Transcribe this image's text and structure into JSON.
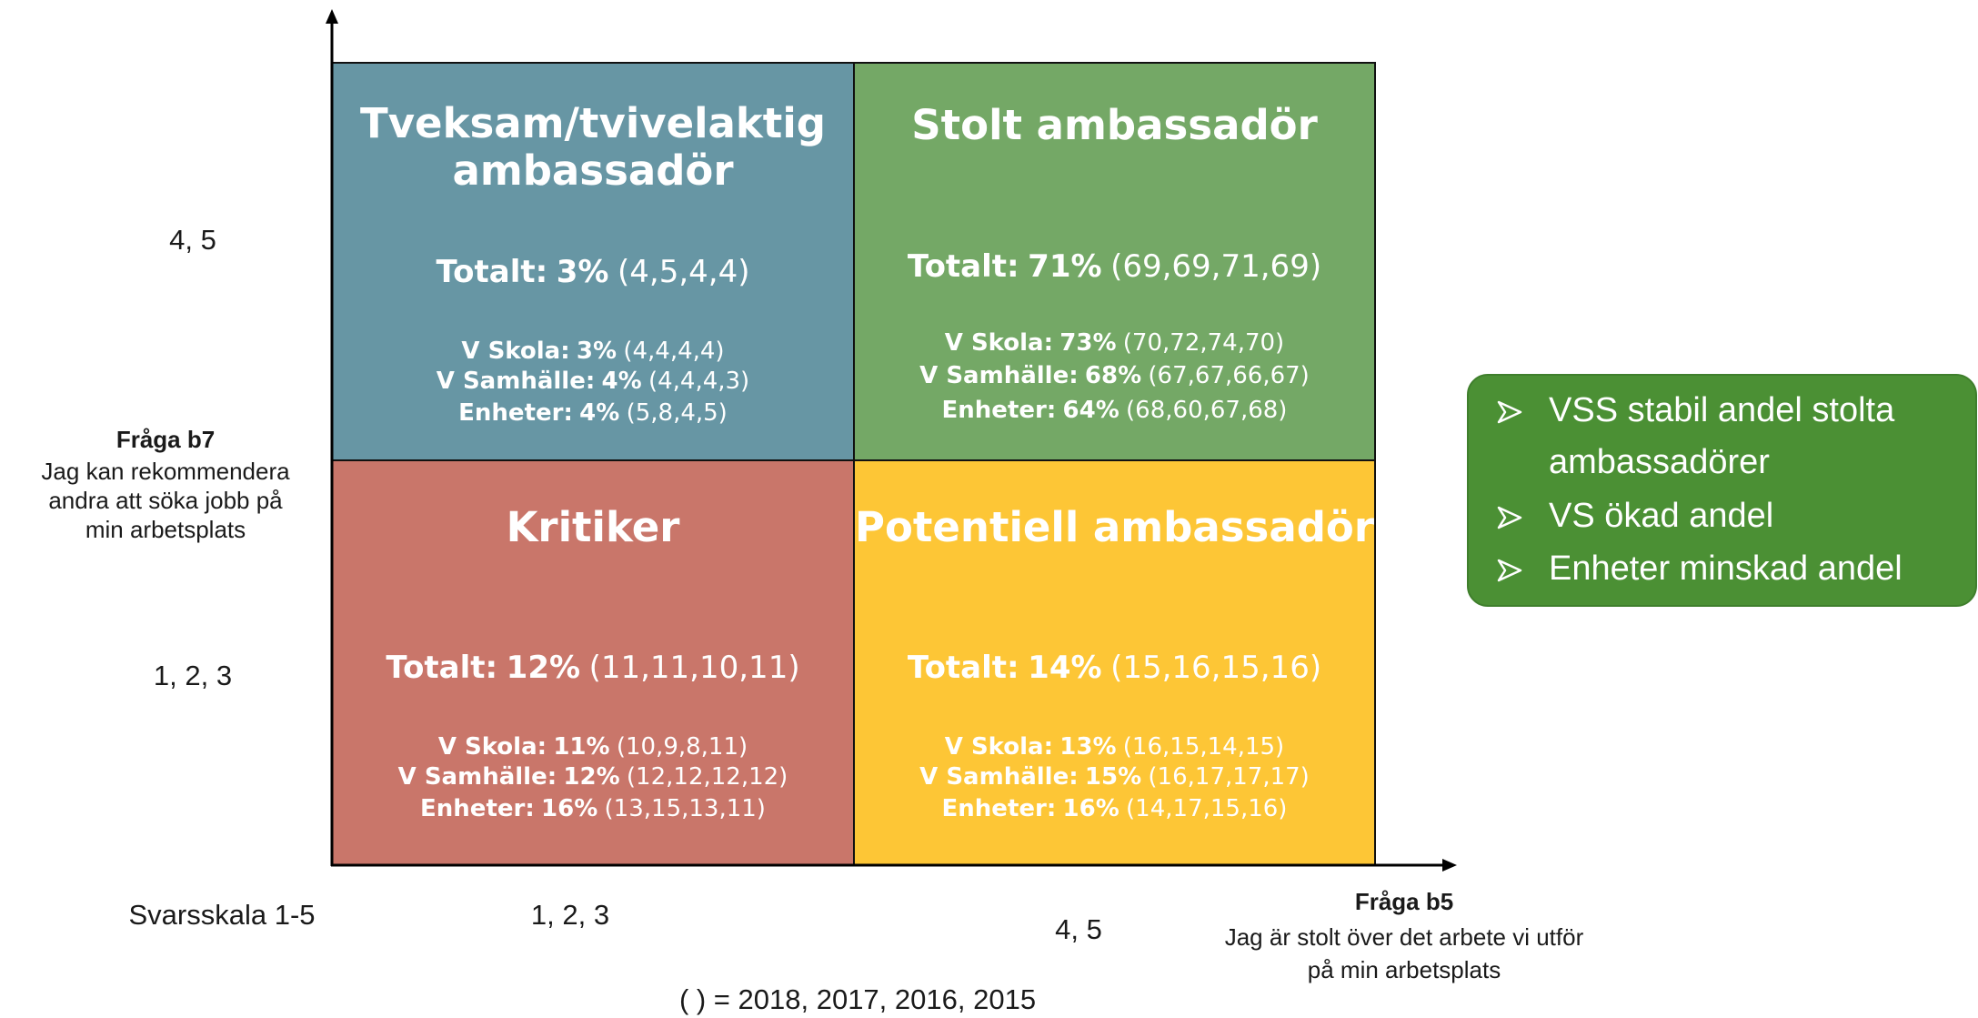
{
  "y_axis": {
    "high": "4, 5",
    "low": "1, 2, 3",
    "title": "Fråga b7",
    "description": [
      "Jag kan rekommendera",
      "andra att söka jobb på",
      "min arbetsplats"
    ]
  },
  "x_axis": {
    "scale": "Svarsskala 1-5",
    "low": "1, 2, 3",
    "high": "4, 5",
    "title": "Fråga b5",
    "description": [
      "Jag är stolt över det arbete vi utför",
      "på min arbetsplats"
    ]
  },
  "legend": "( ) = 2018, 2017, 2016, 2015",
  "quadrants": [
    {
      "title": [
        "Tveksam/tvivelaktig",
        "ambassadör"
      ],
      "color": "#6796a4",
      "total": {
        "label": "Totalt:",
        "value": "3%",
        "history": "(4,5,4,4)"
      },
      "rows": [
        {
          "label": "V Skola:",
          "value": "3%",
          "history": "(4,4,4,4)"
        },
        {
          "label": "V Samhälle:",
          "value": "4%",
          "history": "(4,4,4,3)"
        },
        {
          "label": "Enheter:",
          "value": "4%",
          "history": "(5,8,4,5)"
        }
      ]
    },
    {
      "title": [
        "Stolt ambassadör"
      ],
      "color": "#74a866",
      "total": {
        "label": "Totalt:",
        "value": "71%",
        "history": "(69,69,71,69)"
      },
      "rows": [
        {
          "label": "V Skola:",
          "value": "73%",
          "history": "(70,72,74,70)"
        },
        {
          "label": "V Samhälle:",
          "value": "68%",
          "history": "(67,67,66,67)"
        },
        {
          "label": "Enheter:",
          "value": "64%",
          "history": "(68,60,67,68)"
        }
      ]
    },
    {
      "title": [
        "Kritiker"
      ],
      "color": "#c9766a",
      "total": {
        "label": "Totalt:",
        "value": "12%",
        "history": "(11,11,10,11)"
      },
      "rows": [
        {
          "label": "V Skola:",
          "value": "11%",
          "history": "(10,9,8,11)"
        },
        {
          "label": "V Samhälle:",
          "value": "12%",
          "history": "(12,12,12,12)"
        },
        {
          "label": "Enheter:",
          "value": "16%",
          "history": "(13,15,13,11)"
        }
      ]
    },
    {
      "title": [
        "Potentiell ambassadör"
      ],
      "color": "#fdc636",
      "total": {
        "label": "Totalt:",
        "value": "14%",
        "history": "(15,16,15,16)"
      },
      "rows": [
        {
          "label": "V Skola:",
          "value": "13%",
          "history": "(16,15,14,15)"
        },
        {
          "label": "V Samhälle:",
          "value": "15%",
          "history": "(16,17,17,17)"
        },
        {
          "label": "Enheter:",
          "value": "16%",
          "history": "(14,17,15,16)"
        }
      ]
    }
  ],
  "callout": {
    "items": [
      "VSS stabil andel stolta",
      "ambassadörer",
      "VS ökad andel",
      "Enheter minskad andel"
    ]
  }
}
